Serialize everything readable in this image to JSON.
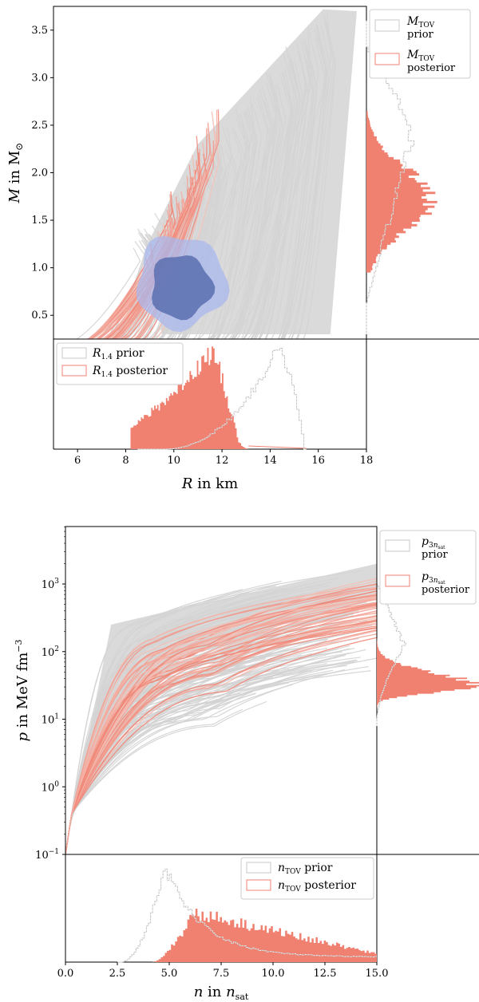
{
  "chart_data": [
    {
      "type": "line",
      "panel": "mass-radius",
      "xlabel": "R in km",
      "ylabel": "M in M⊙",
      "xlim": [
        5,
        18
      ],
      "ylim": [
        0.25,
        3.75
      ],
      "x_ticks": [
        "6",
        "8",
        "10",
        "12",
        "14",
        "16",
        "18"
      ],
      "y_ticks": [
        "0.5",
        "1.0",
        "1.5",
        "2.0",
        "2.5",
        "3.0",
        "3.5"
      ],
      "series": [
        {
          "name": "prior",
          "color": "#d3d3d3",
          "role": "mass-radius prior curves"
        },
        {
          "name": "posterior",
          "color": "#f08070",
          "role": "mass-radius posterior curves"
        }
      ],
      "contours": [
        {
          "level": "outer",
          "center": [
            10.3,
            0.85
          ],
          "color": "#aab8ee"
        },
        {
          "level": "inner",
          "center": [
            10.3,
            0.8
          ],
          "color": "#5a6fb0"
        }
      ],
      "side_histogram": {
        "axis": "M",
        "legend": [
          {
            "sym": "M",
            "sub": "TOV",
            "line2": "prior",
            "color": "#c8c8c8"
          },
          {
            "sym": "M",
            "sub": "TOV",
            "line2": "posterior",
            "color": "#f08070"
          }
        ],
        "prior_peak_M": 2.3,
        "posterior_peak_M": 1.7,
        "posterior_range_M": [
          0.95,
          2.6
        ]
      },
      "bottom_histogram": {
        "axis": "R",
        "legend": [
          {
            "sym": "R",
            "sub": "1.4",
            "line2": "prior",
            "color": "#c8c8c8"
          },
          {
            "sym": "R",
            "sub": "1.4",
            "line2": "posterior",
            "color": "#f08070"
          }
        ],
        "prior_peak_R": 14.2,
        "posterior_peak_R": 11.5,
        "posterior_range_R": [
          8.3,
          13.1
        ]
      }
    },
    {
      "type": "line",
      "panel": "pressure-density",
      "xlabel": "n in n_sat",
      "ylabel": "p in MeV fm⁻³",
      "xlim": [
        0,
        15
      ],
      "ylim_log10": [
        -1,
        3.85
      ],
      "yscale": "log",
      "x_ticks": [
        "0.0",
        "2.5",
        "5.0",
        "7.5",
        "10.0",
        "12.5",
        "15.0"
      ],
      "y_ticks": [
        {
          "base": "10",
          "exp": "−1"
        },
        {
          "base": "10",
          "exp": "0"
        },
        {
          "base": "10",
          "exp": "1"
        },
        {
          "base": "10",
          "exp": "2"
        },
        {
          "base": "10",
          "exp": "3"
        }
      ],
      "series": [
        {
          "name": "prior",
          "color": "#d3d3d3"
        },
        {
          "name": "posterior",
          "color": "#f08070"
        }
      ],
      "side_histogram": {
        "axis": "p",
        "legend": [
          {
            "sym": "p",
            "sub": "3n",
            "subsub": "sat",
            "line2": "prior",
            "color": "#c8c8c8"
          },
          {
            "sym": "p",
            "sub": "3n",
            "subsub": "sat",
            "line2": "posterior",
            "color": "#f08070"
          }
        ],
        "posterior_peak_p": 30
      },
      "bottom_histogram": {
        "axis": "n",
        "legend": [
          {
            "sym": "n",
            "sub": "TOV",
            "line2": "prior",
            "color": "#c8c8c8"
          },
          {
            "sym": "n",
            "sub": "TOV",
            "line2": "posterior",
            "color": "#f08070"
          }
        ],
        "prior_peak_n": 4.8,
        "posterior_peak_n": 6.2,
        "posterior_range_n": [
          4.2,
          15
        ]
      }
    }
  ]
}
